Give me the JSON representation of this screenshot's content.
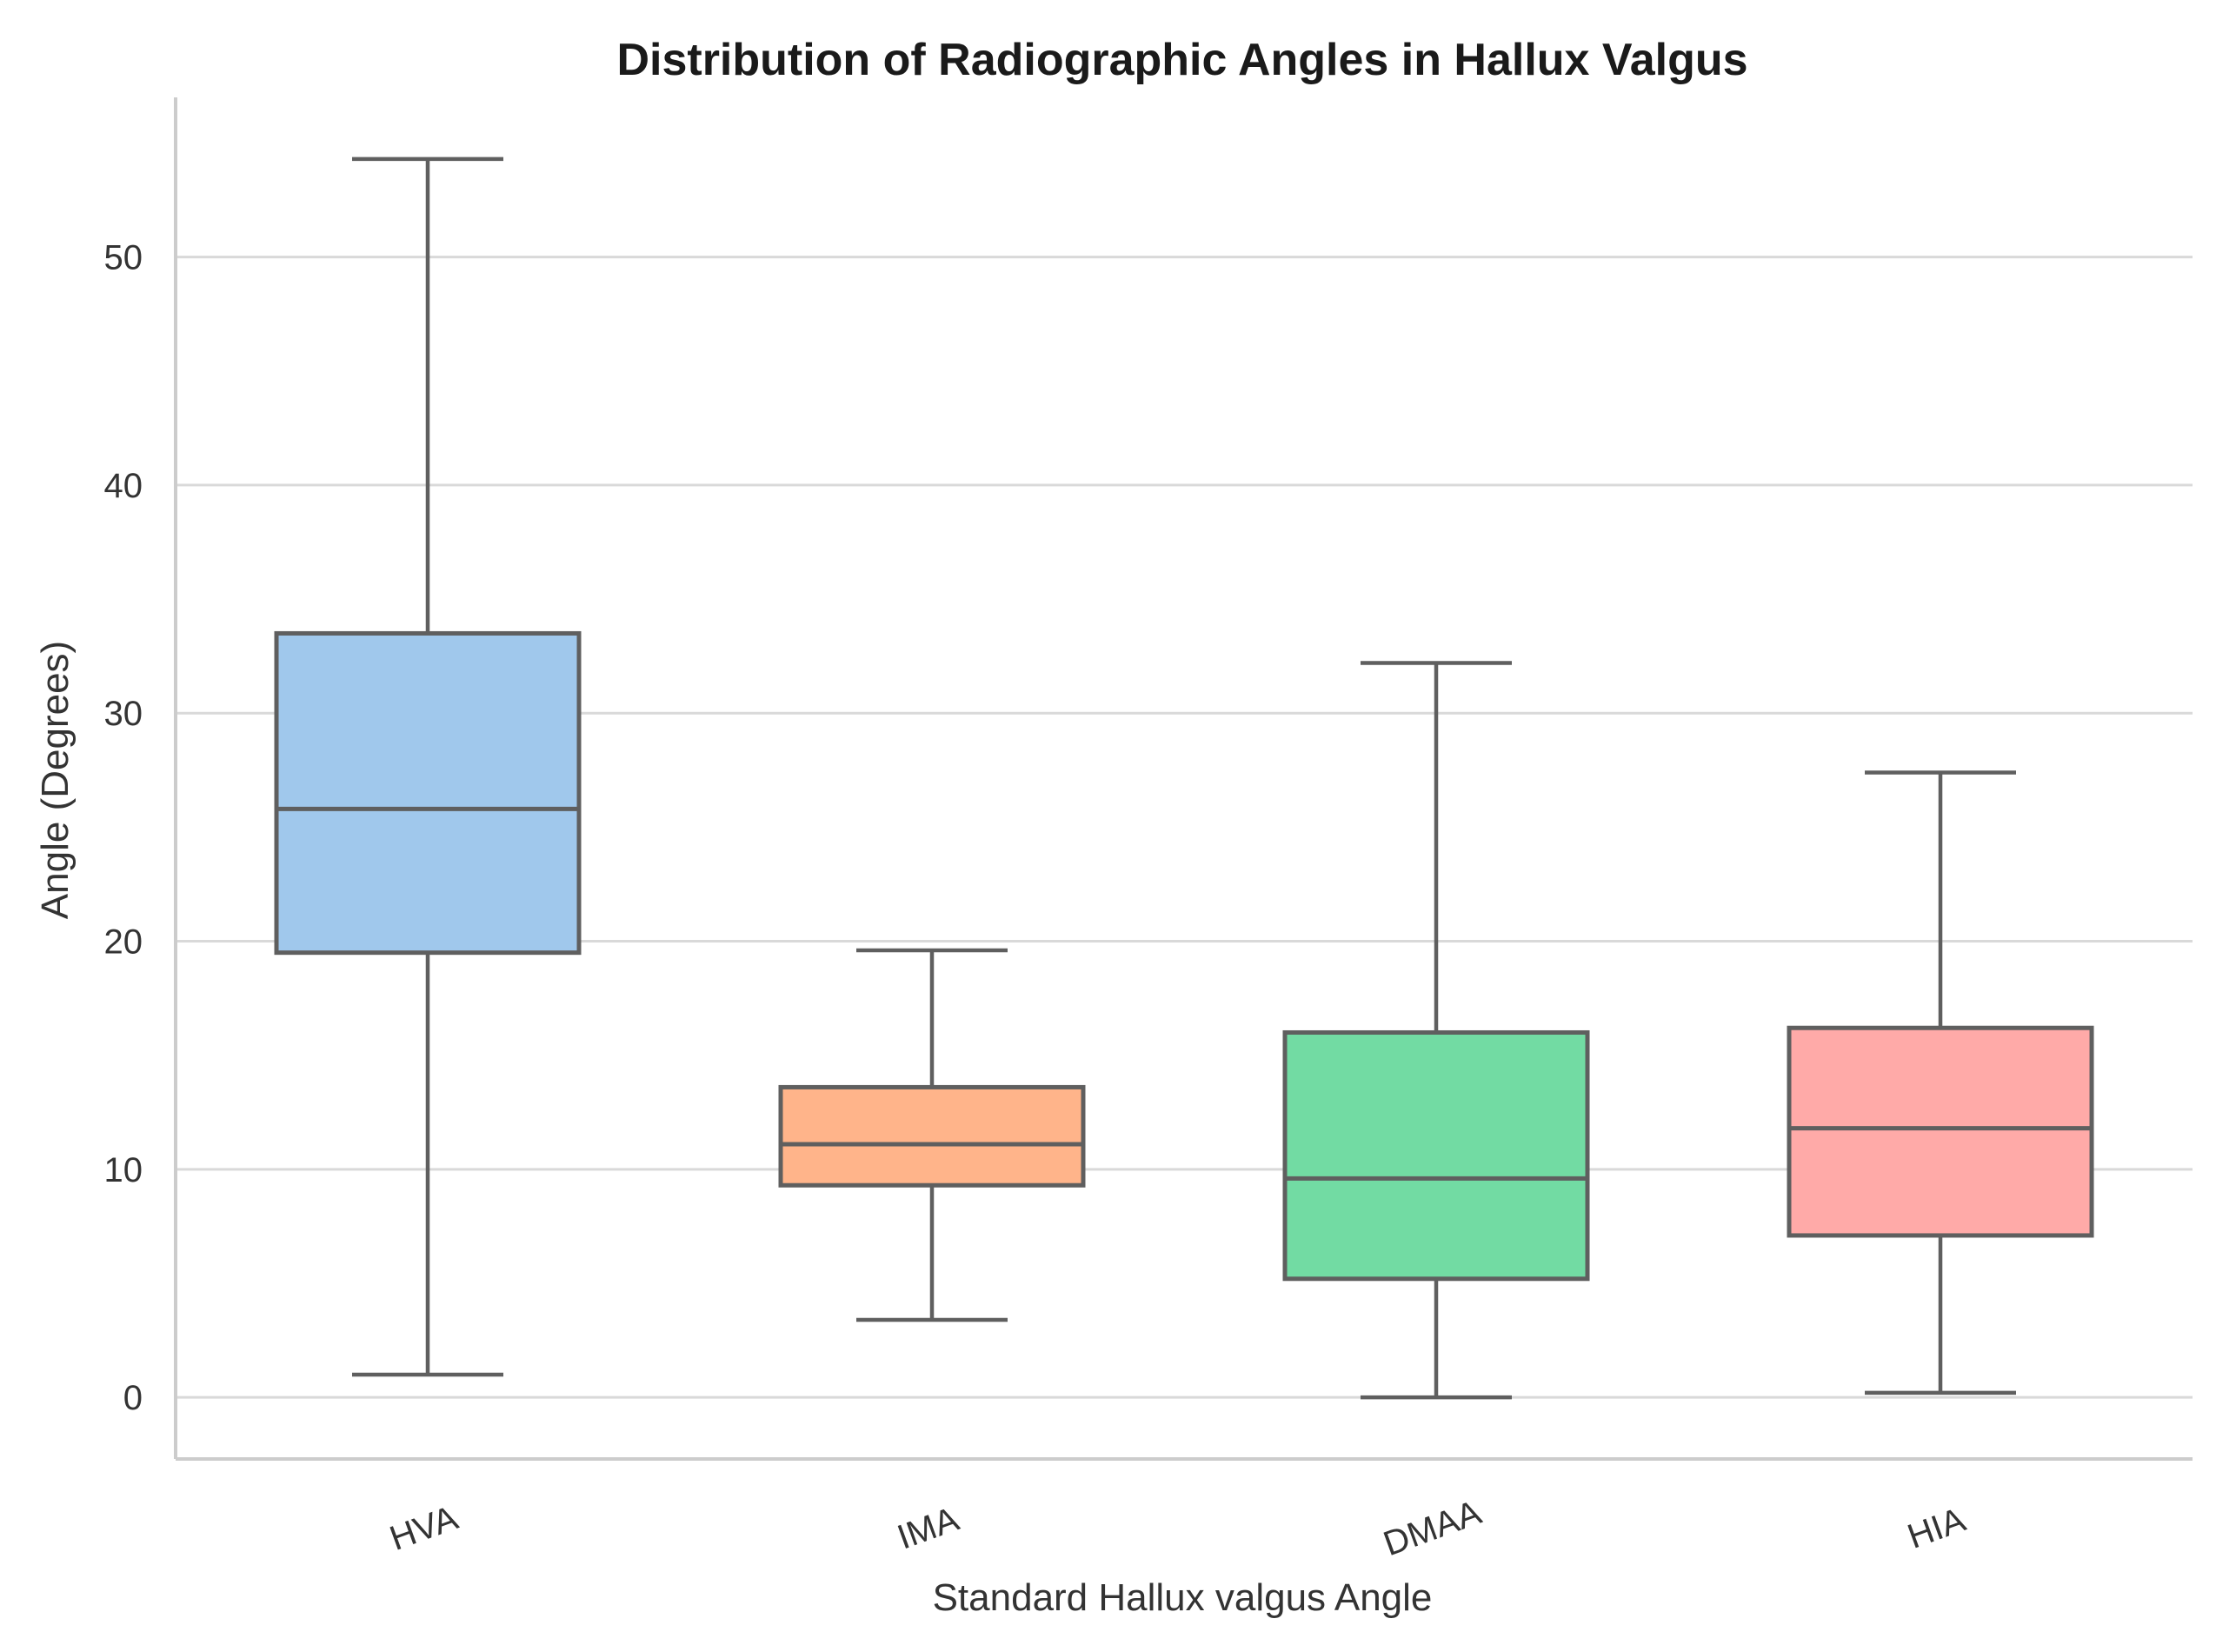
{
  "chart_data": {
    "type": "box",
    "title": "Distribution of Radiographic Angles in Hallux Valgus",
    "xlabel": "Standard Hallux valgus Angle",
    "ylabel": "Angle (Degrees)",
    "ylim": [
      -2.7,
      57
    ],
    "yticks": [
      0,
      10,
      20,
      30,
      40,
      50
    ],
    "grid": "horizontal",
    "categories": [
      "HVA",
      "IMA",
      "DMAA",
      "HIA"
    ],
    "boxes": [
      {
        "name": "HVA",
        "min": 1.0,
        "q1": 19.5,
        "median": 25.8,
        "q3": 33.5,
        "max": 54.3,
        "color": "#a0c8ec"
      },
      {
        "name": "IMA",
        "min": 3.4,
        "q1": 9.3,
        "median": 11.1,
        "q3": 13.6,
        "max": 19.6,
        "color": "#ffb48a"
      },
      {
        "name": "DMAA",
        "min": 0.0,
        "q1": 5.2,
        "median": 9.6,
        "q3": 16.0,
        "max": 32.2,
        "color": "#72dba3"
      },
      {
        "name": "HIA",
        "min": 0.2,
        "q1": 7.1,
        "median": 11.8,
        "q3": 16.2,
        "max": 27.4,
        "color": "#ffaaa8"
      }
    ],
    "line_color": "#5f5f5f",
    "grid_color": "#d9d9d9",
    "spine_color": "#cccccc"
  }
}
